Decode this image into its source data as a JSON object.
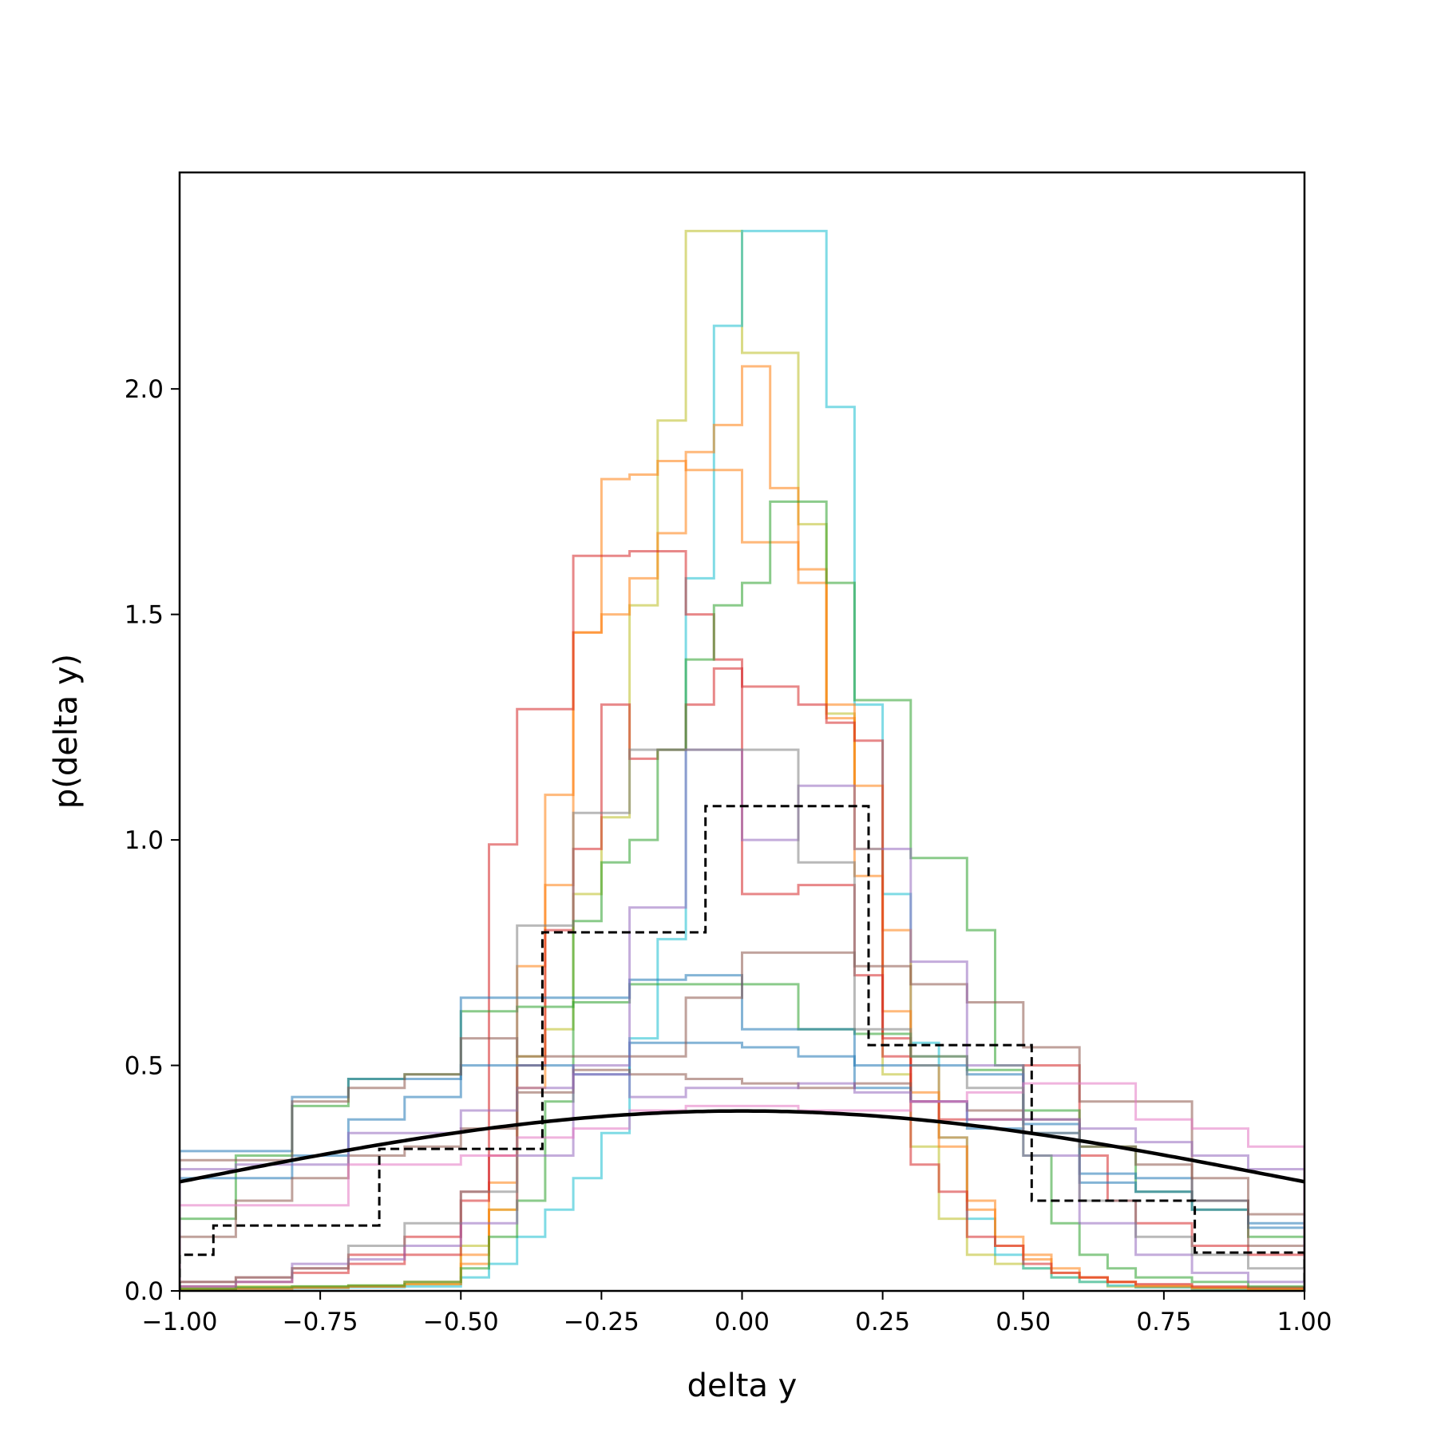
{
  "chart_data": {
    "type": "line",
    "title": "",
    "xlabel": "delta y",
    "ylabel": "p(delta y)",
    "xlim": [
      -1.0,
      1.0
    ],
    "ylim": [
      0.0,
      2.48
    ],
    "xticks": [
      -1.0,
      -0.75,
      -0.5,
      -0.25,
      0.0,
      0.25,
      0.5,
      0.75,
      1.0
    ],
    "xtick_labels": [
      "−1.00",
      "−0.75",
      "−0.50",
      "−0.25",
      "0.00",
      "0.25",
      "0.50",
      "0.75",
      "1.00"
    ],
    "yticks": [
      0.0,
      0.5,
      1.0,
      1.5,
      2.0
    ],
    "ytick_labels": [
      "0.0",
      "0.5",
      "1.0",
      "1.5",
      "2.0"
    ],
    "grid": false,
    "legend": false,
    "reference_histogram": {
      "style": "dashed step, black",
      "color": "#000000",
      "edges": [
        -1.0,
        -0.94,
        -0.645,
        -0.355,
        -0.065,
        0.225,
        0.515,
        0.805,
        1.0
      ],
      "values": [
        0.08,
        0.145,
        0.315,
        0.795,
        1.075,
        0.545,
        0.2,
        0.085
      ]
    },
    "normal_curve": {
      "style": "solid, black",
      "color": "#000000",
      "mean": 0.0,
      "std": 1.0
    },
    "sample_histograms": [
      {
        "color": "#bcbd22",
        "edges": [
          -1.0,
          -0.9,
          -0.8,
          -0.7,
          -0.6,
          -0.5,
          -0.45,
          -0.4,
          -0.35,
          -0.3,
          -0.25,
          -0.2,
          -0.15,
          -0.1,
          -0.05,
          0.0,
          0.05,
          0.1,
          0.15,
          0.2,
          0.25,
          0.3,
          0.35,
          0.4,
          0.45,
          0.5,
          0.55,
          0.6,
          0.65,
          0.7,
          0.8,
          0.9,
          1.0
        ],
        "values": [
          0.005,
          0.01,
          0.01,
          0.012,
          0.015,
          0.1,
          0.18,
          0.52,
          0.58,
          0.88,
          1.05,
          1.52,
          1.93,
          2.35,
          2.35,
          2.08,
          2.08,
          1.7,
          1.28,
          0.98,
          0.48,
          0.32,
          0.16,
          0.08,
          0.06,
          0.05,
          0.03,
          0.02,
          0.01,
          0.008,
          0.005,
          0.005
        ]
      },
      {
        "color": "#17becf",
        "edges": [
          -1.0,
          -0.9,
          -0.8,
          -0.7,
          -0.6,
          -0.5,
          -0.45,
          -0.4,
          -0.35,
          -0.3,
          -0.25,
          -0.2,
          -0.15,
          -0.1,
          -0.05,
          0.0,
          0.05,
          0.1,
          0.15,
          0.2,
          0.25,
          0.3,
          0.35,
          0.4,
          0.45,
          0.5,
          0.55,
          0.6,
          0.65,
          0.7,
          0.8,
          0.9,
          1.0
        ],
        "values": [
          0.003,
          0.005,
          0.006,
          0.008,
          0.01,
          0.03,
          0.06,
          0.12,
          0.18,
          0.25,
          0.35,
          0.56,
          0.78,
          1.58,
          2.14,
          2.35,
          2.35,
          2.35,
          1.96,
          1.3,
          0.88,
          0.55,
          0.34,
          0.16,
          0.08,
          0.05,
          0.03,
          0.02,
          0.012,
          0.008,
          0.005,
          0.004
        ]
      },
      {
        "color": "#ff7f0e",
        "edges": [
          -1.0,
          -0.9,
          -0.8,
          -0.7,
          -0.6,
          -0.5,
          -0.45,
          -0.4,
          -0.35,
          -0.3,
          -0.25,
          -0.2,
          -0.15,
          -0.1,
          -0.05,
          0.0,
          0.05,
          0.1,
          0.15,
          0.2,
          0.25,
          0.3,
          0.35,
          0.4,
          0.45,
          0.5,
          0.55,
          0.6,
          0.65,
          0.7,
          0.8,
          0.9,
          1.0
        ],
        "values": [
          0.004,
          0.006,
          0.008,
          0.01,
          0.015,
          0.06,
          0.18,
          0.45,
          0.9,
          1.46,
          1.5,
          1.58,
          1.68,
          1.86,
          1.92,
          2.05,
          1.78,
          1.57,
          1.27,
          1.12,
          0.8,
          0.5,
          0.32,
          0.2,
          0.12,
          0.08,
          0.05,
          0.03,
          0.02,
          0.012,
          0.008,
          0.005
        ]
      },
      {
        "color": "#ff7f0e",
        "edges": [
          -1.0,
          -0.9,
          -0.8,
          -0.7,
          -0.6,
          -0.5,
          -0.45,
          -0.4,
          -0.35,
          -0.3,
          -0.25,
          -0.2,
          -0.15,
          -0.1,
          -0.05,
          0.0,
          0.05,
          0.1,
          0.15,
          0.2,
          0.25,
          0.3,
          0.35,
          0.4,
          0.45,
          0.5,
          0.55,
          0.6,
          0.65,
          0.7,
          0.8,
          0.9,
          1.0
        ],
        "values": [
          0.003,
          0.005,
          0.007,
          0.01,
          0.02,
          0.08,
          0.24,
          0.72,
          1.1,
          1.46,
          1.8,
          1.81,
          1.84,
          1.82,
          1.82,
          1.66,
          1.66,
          1.6,
          1.3,
          0.92,
          0.62,
          0.44,
          0.34,
          0.18,
          0.1,
          0.07,
          0.04,
          0.03,
          0.02,
          0.01,
          0.006,
          0.004
        ]
      },
      {
        "color": "#d62728",
        "edges": [
          -1.0,
          -0.9,
          -0.8,
          -0.7,
          -0.6,
          -0.5,
          -0.45,
          -0.4,
          -0.35,
          -0.3,
          -0.25,
          -0.2,
          -0.15,
          -0.1,
          -0.05,
          0.0,
          0.05,
          0.1,
          0.15,
          0.2,
          0.25,
          0.3,
          0.35,
          0.4,
          0.45,
          0.5,
          0.55,
          0.6,
          0.65,
          0.7,
          0.8,
          0.9,
          1.0
        ],
        "values": [
          0.01,
          0.02,
          0.04,
          0.06,
          0.08,
          0.2,
          0.99,
          1.29,
          1.29,
          1.63,
          1.63,
          1.64,
          1.64,
          1.5,
          1.4,
          1.34,
          1.34,
          1.3,
          1.26,
          1.22,
          0.52,
          0.28,
          0.22,
          0.12,
          0.1,
          0.06,
          0.04,
          0.03,
          0.02,
          0.015,
          0.01,
          0.008
        ]
      },
      {
        "color": "#d62728",
        "edges": [
          -1.0,
          -0.9,
          -0.8,
          -0.7,
          -0.6,
          -0.5,
          -0.45,
          -0.4,
          -0.35,
          -0.3,
          -0.25,
          -0.2,
          -0.15,
          -0.1,
          -0.05,
          0.0,
          0.05,
          0.1,
          0.15,
          0.2,
          0.25,
          0.3,
          0.35,
          0.4,
          0.45,
          0.5,
          0.55,
          0.6,
          0.65,
          0.7,
          0.8,
          0.9,
          1.0
        ],
        "values": [
          0.02,
          0.03,
          0.05,
          0.08,
          0.12,
          0.22,
          0.3,
          0.5,
          0.8,
          0.98,
          1.3,
          1.18,
          1.2,
          1.3,
          1.38,
          0.88,
          0.88,
          0.9,
          0.9,
          0.7,
          0.56,
          0.42,
          0.38,
          0.38,
          0.38,
          0.5,
          0.5,
          0.3,
          0.2,
          0.15,
          0.1,
          0.08
        ]
      },
      {
        "color": "#2ca02c",
        "edges": [
          -1.0,
          -0.9,
          -0.8,
          -0.7,
          -0.6,
          -0.5,
          -0.45,
          -0.4,
          -0.35,
          -0.3,
          -0.25,
          -0.2,
          -0.15,
          -0.1,
          -0.05,
          0.0,
          0.05,
          0.1,
          0.15,
          0.2,
          0.25,
          0.3,
          0.35,
          0.4,
          0.45,
          0.5,
          0.55,
          0.6,
          0.65,
          0.7,
          0.8,
          0.9,
          1.0
        ],
        "values": [
          0.005,
          0.008,
          0.01,
          0.012,
          0.02,
          0.05,
          0.12,
          0.2,
          0.42,
          0.82,
          0.95,
          1.0,
          1.2,
          1.4,
          1.52,
          1.57,
          1.75,
          1.75,
          1.57,
          1.31,
          1.31,
          0.96,
          0.96,
          0.8,
          0.5,
          0.3,
          0.15,
          0.08,
          0.05,
          0.03,
          0.02,
          0.01
        ]
      },
      {
        "color": "#2ca02c",
        "edges": [
          -1.0,
          -0.9,
          -0.8,
          -0.7,
          -0.6,
          -0.5,
          -0.4,
          -0.3,
          -0.2,
          -0.1,
          0.0,
          0.1,
          0.2,
          0.3,
          0.4,
          0.5,
          0.6,
          0.7,
          0.8,
          0.9,
          1.0
        ],
        "values": [
          0.16,
          0.3,
          0.41,
          0.47,
          0.48,
          0.62,
          0.63,
          0.64,
          0.68,
          0.68,
          0.68,
          0.58,
          0.57,
          0.52,
          0.49,
          0.4,
          0.32,
          0.22,
          0.18,
          0.12
        ]
      },
      {
        "color": "#1f77b4",
        "edges": [
          -1.0,
          -0.9,
          -0.8,
          -0.7,
          -0.6,
          -0.5,
          -0.4,
          -0.3,
          -0.2,
          -0.1,
          0.0,
          0.1,
          0.2,
          0.3,
          0.4,
          0.5,
          0.6,
          0.7,
          0.8,
          0.9,
          1.0
        ],
        "values": [
          0.31,
          0.31,
          0.43,
          0.47,
          0.47,
          0.65,
          0.65,
          0.65,
          0.69,
          0.7,
          0.58,
          0.58,
          0.5,
          0.5,
          0.48,
          0.37,
          0.26,
          0.25,
          0.18,
          0.14
        ]
      },
      {
        "color": "#1f77b4",
        "edges": [
          -1.0,
          -0.9,
          -0.8,
          -0.7,
          -0.6,
          -0.5,
          -0.4,
          -0.3,
          -0.2,
          -0.1,
          0.0,
          0.1,
          0.2,
          0.3,
          0.4,
          0.5,
          0.6,
          0.7,
          0.8,
          0.9,
          1.0
        ],
        "values": [
          0.25,
          0.25,
          0.3,
          0.38,
          0.43,
          0.5,
          0.5,
          0.48,
          0.55,
          0.55,
          0.54,
          0.52,
          0.45,
          0.42,
          0.36,
          0.35,
          0.24,
          0.22,
          0.2,
          0.15
        ]
      },
      {
        "color": "#8c564b",
        "edges": [
          -1.0,
          -0.9,
          -0.8,
          -0.7,
          -0.6,
          -0.5,
          -0.4,
          -0.3,
          -0.2,
          -0.1,
          0.0,
          0.1,
          0.2,
          0.3,
          0.4,
          0.5,
          0.6,
          0.7,
          0.8,
          0.9,
          1.0
        ],
        "values": [
          0.29,
          0.29,
          0.42,
          0.45,
          0.48,
          0.56,
          0.52,
          0.52,
          0.52,
          0.65,
          0.75,
          0.75,
          0.72,
          0.68,
          0.64,
          0.54,
          0.42,
          0.42,
          0.25,
          0.17
        ]
      },
      {
        "color": "#8c564b",
        "edges": [
          -1.0,
          -0.9,
          -0.8,
          -0.7,
          -0.6,
          -0.5,
          -0.4,
          -0.3,
          -0.2,
          -0.1,
          0.0,
          0.1,
          0.2,
          0.3,
          0.4,
          0.5,
          0.6,
          0.7,
          0.8,
          0.9,
          1.0
        ],
        "values": [
          0.12,
          0.2,
          0.25,
          0.3,
          0.32,
          0.36,
          0.44,
          0.49,
          0.48,
          0.47,
          0.46,
          0.45,
          0.46,
          0.42,
          0.4,
          0.38,
          0.32,
          0.28,
          0.2,
          0.1
        ]
      },
      {
        "color": "#9467bd",
        "edges": [
          -1.0,
          -0.9,
          -0.8,
          -0.7,
          -0.6,
          -0.5,
          -0.4,
          -0.3,
          -0.2,
          -0.1,
          0.0,
          0.1,
          0.2,
          0.3,
          0.4,
          0.5,
          0.6,
          0.7,
          0.8,
          0.9,
          1.0
        ],
        "values": [
          0.27,
          0.28,
          0.28,
          0.35,
          0.35,
          0.4,
          0.45,
          0.48,
          0.43,
          0.45,
          0.45,
          0.46,
          0.44,
          0.42,
          0.38,
          0.38,
          0.36,
          0.33,
          0.3,
          0.27
        ]
      },
      {
        "color": "#9467bd",
        "edges": [
          -1.0,
          -0.9,
          -0.8,
          -0.7,
          -0.6,
          -0.5,
          -0.4,
          -0.3,
          -0.2,
          -0.1,
          0.0,
          0.1,
          0.2,
          0.3,
          0.4,
          0.5,
          0.6,
          0.7,
          0.8,
          0.9,
          1.0
        ],
        "values": [
          0.01,
          0.02,
          0.06,
          0.07,
          0.1,
          0.15,
          0.3,
          0.5,
          0.85,
          1.2,
          1.0,
          1.12,
          0.98,
          0.73,
          0.5,
          0.3,
          0.15,
          0.08,
          0.04,
          0.02
        ]
      },
      {
        "color": "#e377c2",
        "edges": [
          -1.0,
          -0.9,
          -0.8,
          -0.7,
          -0.6,
          -0.5,
          -0.4,
          -0.3,
          -0.2,
          -0.1,
          0.0,
          0.1,
          0.2,
          0.3,
          0.4,
          0.5,
          0.6,
          0.7,
          0.8,
          0.9,
          1.0
        ],
        "values": [
          0.19,
          0.19,
          0.19,
          0.28,
          0.28,
          0.3,
          0.34,
          0.36,
          0.4,
          0.41,
          0.41,
          0.4,
          0.4,
          0.42,
          0.44,
          0.46,
          0.46,
          0.38,
          0.36,
          0.32
        ]
      },
      {
        "color": "#7f7f7f",
        "edges": [
          -1.0,
          -0.9,
          -0.8,
          -0.7,
          -0.6,
          -0.5,
          -0.4,
          -0.3,
          -0.2,
          -0.1,
          0.0,
          0.1,
          0.2,
          0.3,
          0.4,
          0.5,
          0.6,
          0.7,
          0.8,
          0.9,
          1.0
        ],
        "values": [
          0.02,
          0.03,
          0.05,
          0.1,
          0.15,
          0.22,
          0.81,
          1.06,
          1.2,
          1.2,
          1.2,
          0.95,
          0.58,
          0.52,
          0.45,
          0.35,
          0.2,
          0.12,
          0.08,
          0.05
        ]
      }
    ]
  }
}
